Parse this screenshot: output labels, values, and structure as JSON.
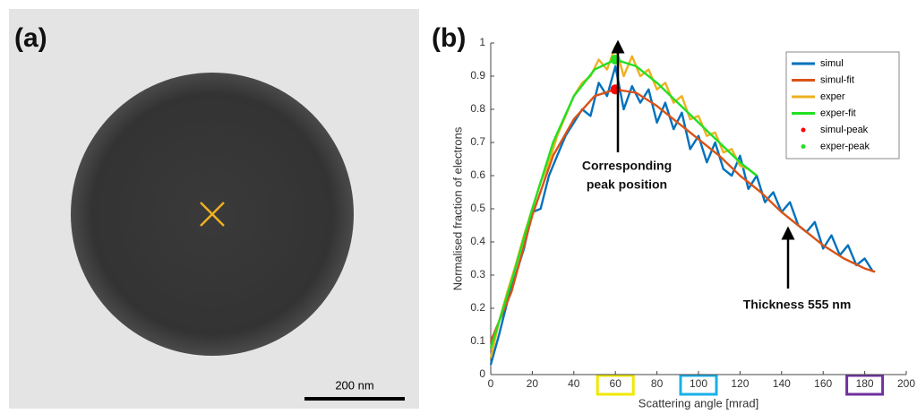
{
  "panel_a": {
    "label": "(a)",
    "scale_bar": "200 nm"
  },
  "panel_b": {
    "label": "(b)"
  },
  "chart_data": {
    "type": "line",
    "xlabel": "Scattering angle [mrad]",
    "ylabel": "Normalised fraction of electrons",
    "xlim": [
      0,
      200
    ],
    "xticks": [
      0,
      20,
      40,
      60,
      80,
      100,
      120,
      140,
      160,
      180,
      200
    ],
    "ylim": [
      0,
      1
    ],
    "yticks": [
      0,
      0.1,
      0.2,
      0.3,
      0.4,
      0.5,
      0.6,
      0.7,
      0.8,
      0.9,
      1
    ],
    "legend": "upper right",
    "annotations": [
      "Corresponding",
      "peak position",
      "Thickness 555 nm"
    ],
    "xtick_boxes": [
      {
        "tick": 60,
        "color": "#f0e800"
      },
      {
        "tick": 100,
        "color": "#1ab0e8"
      },
      {
        "tick": 180,
        "color": "#7030a0"
      }
    ],
    "series": [
      {
        "name": "simul",
        "color": "#0072bd",
        "mode": "line",
        "width": 2.4,
        "x": [
          0,
          4,
          8,
          12,
          16,
          20,
          24,
          28,
          32,
          36,
          40,
          44,
          48,
          52,
          56,
          60,
          64,
          68,
          72,
          76,
          80,
          84,
          88,
          92,
          96,
          100,
          104,
          108,
          112,
          116,
          120,
          124,
          128,
          132,
          136,
          140,
          144,
          148,
          152,
          156,
          160,
          164,
          168,
          172,
          176,
          180,
          184
        ],
        "values": [
          0.03,
          0.12,
          0.22,
          0.3,
          0.38,
          0.49,
          0.5,
          0.6,
          0.66,
          0.72,
          0.76,
          0.8,
          0.78,
          0.88,
          0.84,
          0.93,
          0.8,
          0.87,
          0.82,
          0.86,
          0.76,
          0.82,
          0.74,
          0.79,
          0.68,
          0.72,
          0.64,
          0.7,
          0.62,
          0.6,
          0.66,
          0.56,
          0.6,
          0.52,
          0.55,
          0.49,
          0.52,
          0.45,
          0.43,
          0.46,
          0.38,
          0.42,
          0.36,
          0.39,
          0.33,
          0.35,
          0.31
        ]
      },
      {
        "name": "simul-fit",
        "color": "#d95319",
        "mode": "line",
        "width": 2.4,
        "x": [
          0,
          10,
          20,
          30,
          40,
          50,
          60,
          70,
          80,
          90,
          100,
          110,
          120,
          130,
          140,
          150,
          160,
          170,
          180,
          185
        ],
        "values": [
          0.1,
          0.25,
          0.48,
          0.66,
          0.77,
          0.84,
          0.86,
          0.85,
          0.81,
          0.76,
          0.71,
          0.66,
          0.6,
          0.55,
          0.49,
          0.44,
          0.39,
          0.35,
          0.32,
          0.31
        ]
      },
      {
        "name": "exper",
        "color": "#edb120",
        "mode": "line",
        "width": 2.4,
        "x": [
          0,
          4,
          8,
          12,
          16,
          20,
          24,
          28,
          32,
          36,
          40,
          44,
          48,
          52,
          56,
          60,
          64,
          68,
          72,
          76,
          80,
          84,
          88,
          92,
          96,
          100,
          104,
          108,
          112,
          116,
          120,
          124,
          128
        ],
        "values": [
          0.05,
          0.16,
          0.25,
          0.33,
          0.42,
          0.5,
          0.58,
          0.64,
          0.72,
          0.78,
          0.84,
          0.88,
          0.9,
          0.95,
          0.92,
          0.99,
          0.9,
          0.96,
          0.9,
          0.92,
          0.86,
          0.88,
          0.82,
          0.84,
          0.77,
          0.78,
          0.72,
          0.73,
          0.67,
          0.68,
          0.63,
          0.62,
          0.6
        ]
      },
      {
        "name": "exper-fit",
        "color": "#22e022",
        "mode": "line",
        "width": 2.4,
        "x": [
          0,
          10,
          20,
          30,
          40,
          50,
          60,
          70,
          80,
          90,
          100,
          110,
          120,
          128
        ],
        "values": [
          0.08,
          0.28,
          0.5,
          0.7,
          0.84,
          0.92,
          0.95,
          0.93,
          0.88,
          0.82,
          0.76,
          0.7,
          0.64,
          0.6
        ]
      },
      {
        "name": "simul-peak",
        "color": "#ff0000",
        "mode": "markers",
        "x": [
          60
        ],
        "values": [
          0.86
        ]
      },
      {
        "name": "exper-peak",
        "color": "#22e022",
        "mode": "markers",
        "x": [
          60
        ],
        "values": [
          0.95
        ]
      }
    ]
  }
}
